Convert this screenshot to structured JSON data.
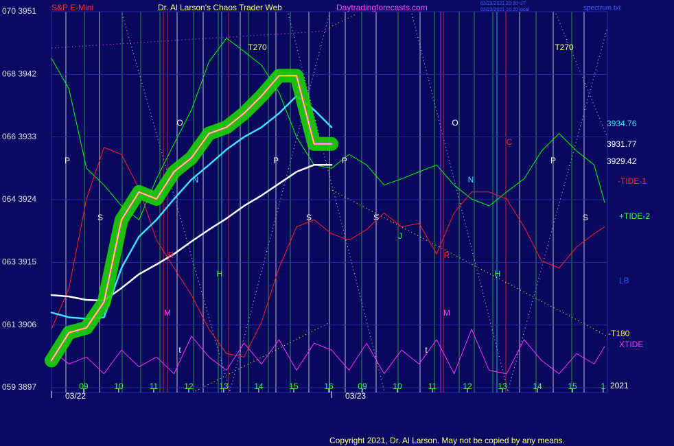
{
  "chart_data": {
    "type": "line",
    "title": "Dr. Al Larson's Chaos Trader Web",
    "symbol": "S&P E-Mini",
    "site": "Daytradingforecasts.com",
    "timestamps": [
      "03/23/2021 20:20 UT",
      "03/23/2021 16:20 local"
    ],
    "file": "spectrum.txt",
    "copyright": "Copyright 2021, Dr. Al Larson. May not be copied by any means.",
    "xlim": [
      0,
      15.88
    ],
    "ylim": [
      3897,
      3951
    ],
    "yticks": [
      {
        "value": 3951,
        "label": "070 3951"
      },
      {
        "value": 3942,
        "label": "068 3942"
      },
      {
        "value": 3933,
        "label": "066 3933"
      },
      {
        "value": 3924,
        "label": "064 3924"
      },
      {
        "value": 3915,
        "label": "063 3915"
      },
      {
        "value": 3906,
        "label": "061 3906"
      },
      {
        "value": 3897,
        "label": "059 3897"
      }
    ],
    "xticks": [
      {
        "value": 0.92,
        "label": "09"
      },
      {
        "value": 1.92,
        "label": "10"
      },
      {
        "value": 2.92,
        "label": "11"
      },
      {
        "value": 3.92,
        "label": "12"
      },
      {
        "value": 4.92,
        "label": "13"
      },
      {
        "value": 5.92,
        "label": "14"
      },
      {
        "value": 6.92,
        "label": "15"
      },
      {
        "value": 7.92,
        "label": "16"
      },
      {
        "value": 8.88,
        "label": "09"
      },
      {
        "value": 9.88,
        "label": "10"
      },
      {
        "value": 10.88,
        "label": "11"
      },
      {
        "value": 11.88,
        "label": "12"
      },
      {
        "value": 12.88,
        "label": "13"
      },
      {
        "value": 13.88,
        "label": "14"
      },
      {
        "value": 14.88,
        "label": "15"
      },
      {
        "value": 15.76,
        "label": "1"
      }
    ],
    "date_ticks": [
      {
        "value": 0,
        "label": "03/22"
      },
      {
        "value": 8.0,
        "label": "03/23"
      }
    ],
    "x": [
      0,
      0.5,
      1,
      1.5,
      2,
      2.5,
      3,
      3.5,
      4,
      4.5,
      5,
      5.5,
      6,
      6.5,
      7,
      7.5,
      8,
      8.5,
      9,
      9.5,
      10,
      10.5,
      11,
      11.5,
      12,
      12.5,
      13,
      13.5,
      14,
      14.5,
      15,
      15.5,
      15.8
    ],
    "series": [
      {
        "color": "#00ff00",
        "values": [
          3944.3,
          3939.9,
          3928.5,
          3926.1,
          3923.1,
          3921.1,
          3927.0,
          3932.0,
          3936.9,
          3943.8,
          3947.2,
          3945.3,
          3943.3,
          3939.4,
          3933.0,
          3929.0,
          3928.5,
          3930.5,
          3929.0,
          3926.1,
          3927.0,
          3928.0,
          3929.0,
          3926.1,
          3924.1,
          3923.1,
          3925.1,
          3927.0,
          3931.0,
          3933.5,
          3931.0,
          3929.0,
          3923.6
        ]
      },
      {
        "color": "#ff2020",
        "values": [
          3905.4,
          3911.3,
          3924.1,
          3931.5,
          3930.5,
          3925.6,
          3918.2,
          3914.2,
          3910.3,
          3905.4,
          3901.9,
          3901.4,
          3906.4,
          3914.2,
          3920.1,
          3921.1,
          3919.1,
          3918.2,
          3919.7,
          3922.1,
          3920.1,
          3920.6,
          3916.2,
          3922.1,
          3925.1,
          3925.1,
          3924.1,
          3920.1,
          3915.2,
          3914.2,
          3917.2,
          3919.1,
          3920.1
        ]
      },
      {
        "color": "#ff30ff",
        "values": [
          3902.4,
          3900.4,
          3901.4,
          3899.0,
          3902.4,
          3900.0,
          3901.4,
          3899.0,
          3904.4,
          3901.4,
          3899.5,
          3903.4,
          3900.4,
          3903.9,
          3899.5,
          3903.4,
          3902.4,
          3899.5,
          3903.4,
          3899.0,
          3902.4,
          3900.4,
          3903.9,
          3899.0,
          3905.4,
          3899.5,
          3899.0,
          3903.9,
          3900.9,
          3899.0,
          3901.9,
          3900.4,
          3902.9
        ]
      },
      {
        "color": "#ffffff",
        "values": [
          3910.3,
          3910.1,
          3909.6,
          3909.5,
          3911.3,
          3913.3,
          3914.7,
          3916.2,
          3918.0,
          3919.7,
          3921.3,
          3923.1,
          3924.6,
          3926.3,
          3928.0,
          3929.0,
          3929.0,
          null,
          null,
          null,
          null,
          null,
          null,
          null,
          null,
          null,
          null,
          null,
          null,
          null,
          null,
          null,
          null
        ]
      },
      {
        "color": "#40e0ff",
        "values": [
          3907.8,
          3907.1,
          3906.9,
          3907.1,
          3914.2,
          3918.7,
          3921.1,
          3924.1,
          3926.9,
          3929.0,
          3931.2,
          3933.0,
          3934.4,
          3936.4,
          3938.9,
          3936.9,
          3934.4,
          null,
          null,
          null,
          null,
          null,
          null,
          null,
          null,
          null,
          null,
          null,
          null,
          null,
          null,
          null,
          null
        ]
      },
      {
        "color": "#ffff00",
        "highlight": "#1ed400",
        "values": [
          3900.9,
          3904.9,
          3905.6,
          3909.3,
          3921.1,
          3925.1,
          3924.1,
          3928.0,
          3930.0,
          3933.5,
          3934.4,
          3936.4,
          3938.9,
          3941.8,
          3941.8,
          3932.0,
          3932.0,
          null,
          null,
          null,
          null,
          null,
          null,
          null,
          null,
          null,
          null,
          null,
          null,
          null,
          null,
          null,
          null
        ]
      }
    ],
    "annotations": [
      "P",
      "S",
      "O",
      "N",
      "R",
      "M",
      "H",
      "t",
      "T270",
      "P",
      "S",
      "P",
      "S",
      "J",
      "O",
      "N",
      "C",
      "R",
      "M",
      "H",
      "t",
      "T270",
      "P",
      "S"
    ],
    "right_labels": [
      {
        "text": "3934.76",
        "color": "#40e0ff"
      },
      {
        "text": "3931.77",
        "color": "#ffffff"
      },
      {
        "text": "3929.42",
        "color": "#ffffff"
      },
      {
        "text": "-TIDE-1",
        "color": "#ff3030"
      },
      {
        "text": "+TIDE-2",
        "color": "#40ff40"
      },
      {
        "text": "LB",
        "color": "#3050ff"
      },
      {
        "text": "-T180",
        "color": "#ffff00"
      },
      {
        "text": "XTIDE",
        "color": "#ff30ff"
      },
      {
        "text": "2021",
        "color": "#ffffff"
      }
    ]
  }
}
